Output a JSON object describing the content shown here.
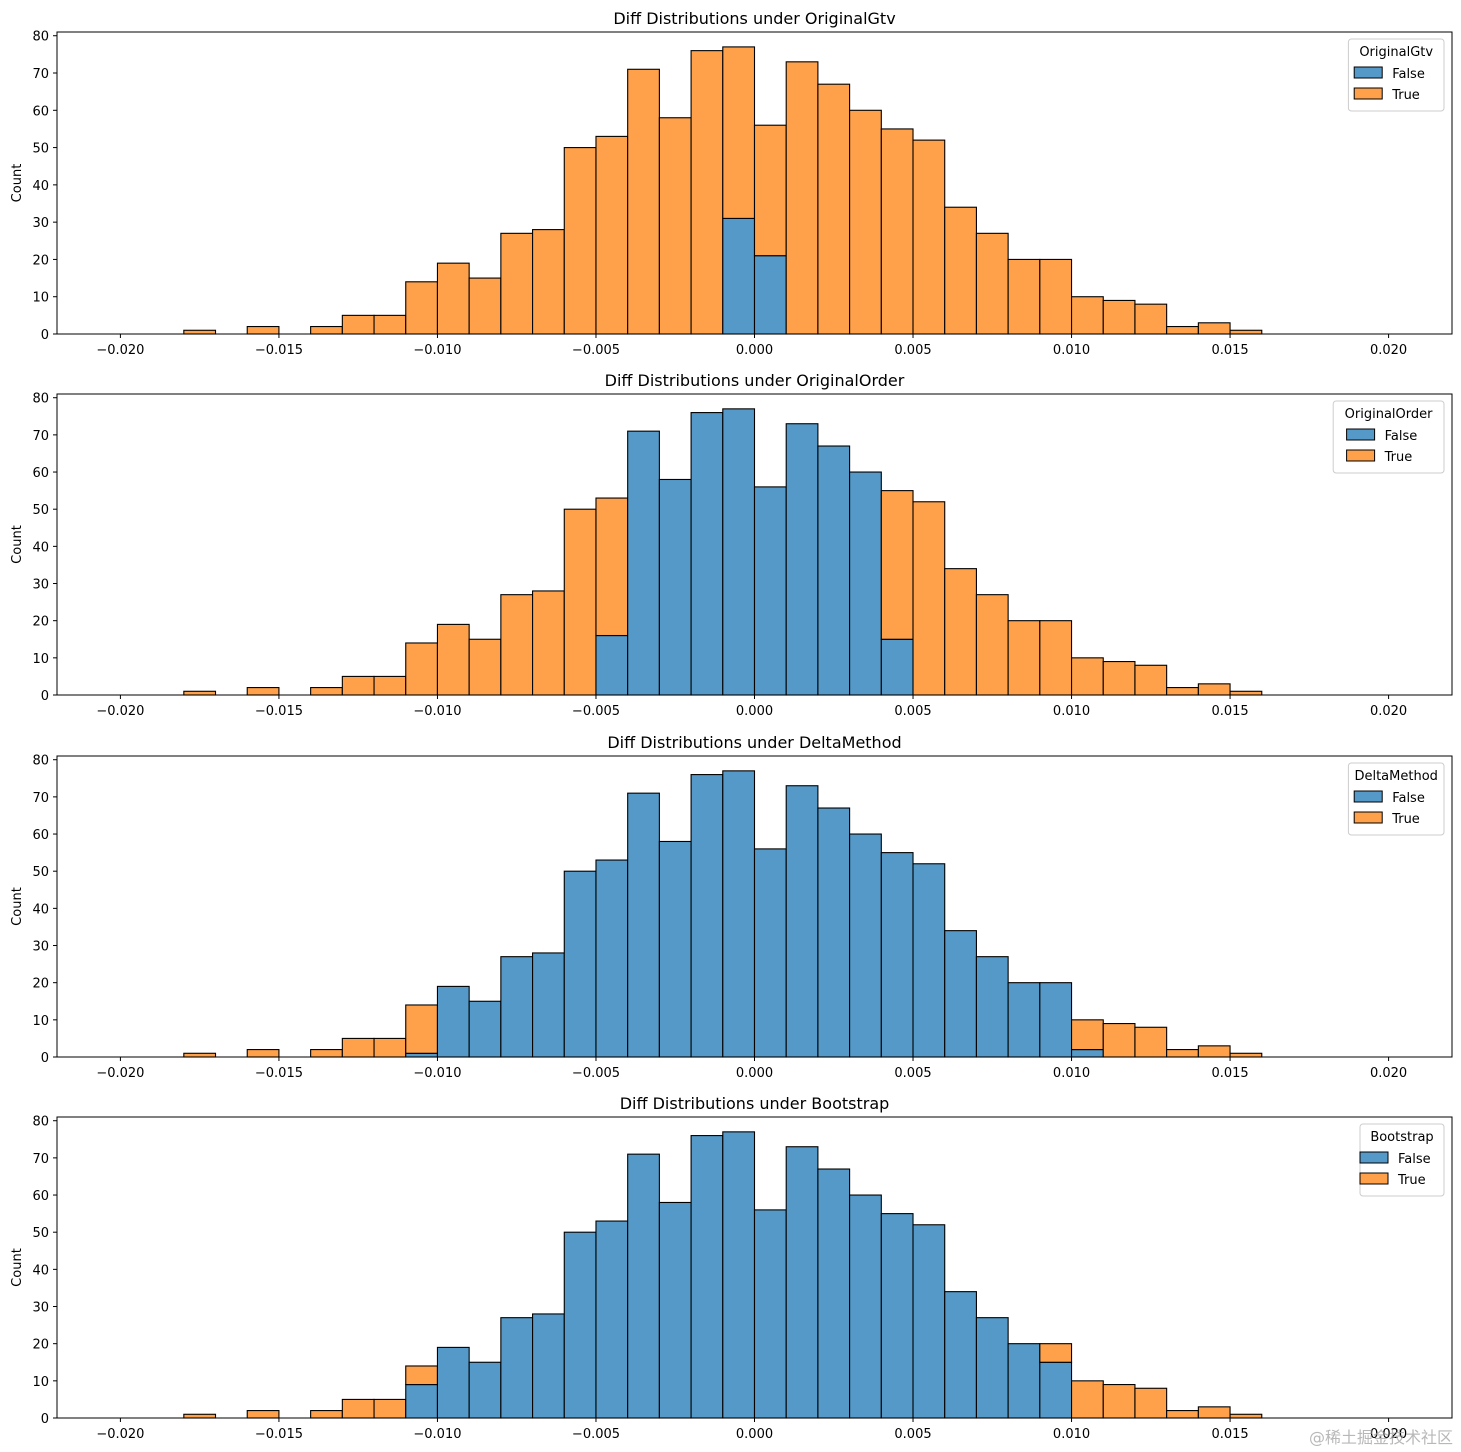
{
  "colors": {
    "false": "#5499c7",
    "true": "#ffa04a",
    "edge": "#000000"
  },
  "chart_data": [
    {
      "type": "bar",
      "stacked": true,
      "title": "Diff Distributions under OriginalGtv",
      "xlabel": "",
      "ylabel": "Count",
      "xlim": [
        -0.022,
        0.022
      ],
      "ylim": [
        0,
        81
      ],
      "xticks": [
        -0.02,
        -0.015,
        -0.01,
        -0.005,
        0.0,
        0.005,
        0.01,
        0.015,
        0.02
      ],
      "xtick_labels": [
        "−0.020",
        "−0.015",
        "−0.010",
        "−0.005",
        "0.000",
        "0.005",
        "0.010",
        "0.015",
        "0.020"
      ],
      "yticks": [
        0,
        10,
        20,
        30,
        40,
        50,
        60,
        70,
        80
      ],
      "ytick_labels": [
        "0",
        "10",
        "20",
        "30",
        "40",
        "50",
        "60",
        "70",
        "80"
      ],
      "bin_start": -0.02,
      "bin_width": 0.001,
      "legend": {
        "title": "OriginalGtv",
        "position": "top-right",
        "labels": [
          "False",
          "True"
        ]
      },
      "series": [
        {
          "name": "False",
          "values": [
            0,
            0,
            0,
            0,
            0,
            0,
            0,
            0,
            0,
            0,
            0,
            0,
            0,
            0,
            0,
            0,
            0,
            0,
            0,
            31,
            21,
            0,
            0,
            0,
            0,
            0,
            0,
            0,
            0,
            0,
            0,
            0,
            0,
            0,
            0,
            0,
            0,
            0,
            0,
            0
          ]
        },
        {
          "name": "True",
          "values": [
            0,
            0,
            1,
            0,
            2,
            0,
            2,
            5,
            5,
            14,
            19,
            15,
            27,
            28,
            50,
            53,
            71,
            58,
            76,
            46,
            35,
            73,
            67,
            60,
            55,
            52,
            34,
            27,
            20,
            20,
            10,
            9,
            8,
            2,
            3,
            1,
            0,
            0,
            0,
            0
          ]
        }
      ]
    },
    {
      "type": "bar",
      "stacked": true,
      "title": "Diff Distributions under OriginalOrder",
      "xlabel": "",
      "ylabel": "Count",
      "xlim": [
        -0.022,
        0.022
      ],
      "ylim": [
        0,
        81
      ],
      "xticks": [
        -0.02,
        -0.015,
        -0.01,
        -0.005,
        0.0,
        0.005,
        0.01,
        0.015,
        0.02
      ],
      "xtick_labels": [
        "−0.020",
        "−0.015",
        "−0.010",
        "−0.005",
        "0.000",
        "0.005",
        "0.010",
        "0.015",
        "0.020"
      ],
      "yticks": [
        0,
        10,
        20,
        30,
        40,
        50,
        60,
        70,
        80
      ],
      "ytick_labels": [
        "0",
        "10",
        "20",
        "30",
        "40",
        "50",
        "60",
        "70",
        "80"
      ],
      "bin_start": -0.02,
      "bin_width": 0.001,
      "legend": {
        "title": "OriginalOrder",
        "position": "top-right",
        "labels": [
          "False",
          "True"
        ]
      },
      "series": [
        {
          "name": "False",
          "values": [
            0,
            0,
            0,
            0,
            0,
            0,
            0,
            0,
            0,
            0,
            0,
            0,
            0,
            0,
            0,
            16,
            71,
            58,
            76,
            77,
            56,
            73,
            67,
            60,
            15,
            0,
            0,
            0,
            0,
            0,
            0,
            0,
            0,
            0,
            0,
            0,
            0,
            0,
            0,
            0
          ]
        },
        {
          "name": "True",
          "values": [
            0,
            0,
            1,
            0,
            2,
            0,
            2,
            5,
            5,
            14,
            19,
            15,
            27,
            28,
            50,
            37,
            0,
            0,
            0,
            0,
            0,
            0,
            0,
            0,
            40,
            52,
            34,
            27,
            20,
            20,
            10,
            9,
            8,
            2,
            3,
            1,
            0,
            0,
            0,
            0
          ]
        }
      ]
    },
    {
      "type": "bar",
      "stacked": true,
      "title": "Diff Distributions under DeltaMethod",
      "xlabel": "",
      "ylabel": "Count",
      "xlim": [
        -0.022,
        0.022
      ],
      "ylim": [
        0,
        81
      ],
      "xticks": [
        -0.02,
        -0.015,
        -0.01,
        -0.005,
        0.0,
        0.005,
        0.01,
        0.015,
        0.02
      ],
      "xtick_labels": [
        "−0.020",
        "−0.015",
        "−0.010",
        "−0.005",
        "0.000",
        "0.005",
        "0.010",
        "0.015",
        "0.020"
      ],
      "yticks": [
        0,
        10,
        20,
        30,
        40,
        50,
        60,
        70,
        80
      ],
      "ytick_labels": [
        "0",
        "10",
        "20",
        "30",
        "40",
        "50",
        "60",
        "70",
        "80"
      ],
      "bin_start": -0.02,
      "bin_width": 0.001,
      "legend": {
        "title": "DeltaMethod",
        "position": "top-right",
        "labels": [
          "False",
          "True"
        ]
      },
      "series": [
        {
          "name": "False",
          "values": [
            0,
            0,
            0,
            0,
            0,
            0,
            0,
            0,
            0,
            1,
            19,
            15,
            27,
            28,
            50,
            53,
            71,
            58,
            76,
            77,
            56,
            73,
            67,
            60,
            55,
            52,
            34,
            27,
            20,
            20,
            2,
            0,
            0,
            0,
            0,
            0,
            0,
            0,
            0,
            0
          ]
        },
        {
          "name": "True",
          "values": [
            0,
            0,
            1,
            0,
            2,
            0,
            2,
            5,
            5,
            13,
            0,
            0,
            0,
            0,
            0,
            0,
            0,
            0,
            0,
            0,
            0,
            0,
            0,
            0,
            0,
            0,
            0,
            0,
            0,
            0,
            8,
            9,
            8,
            2,
            3,
            1,
            0,
            0,
            0,
            0
          ]
        }
      ]
    },
    {
      "type": "bar",
      "stacked": true,
      "title": "Diff Distributions under Bootstrap",
      "xlabel": "",
      "ylabel": "Count",
      "xlim": [
        -0.022,
        0.022
      ],
      "ylim": [
        0,
        81
      ],
      "xticks": [
        -0.02,
        -0.015,
        -0.01,
        -0.005,
        0.0,
        0.005,
        0.01,
        0.015,
        0.02
      ],
      "xtick_labels": [
        "−0.020",
        "−0.015",
        "−0.010",
        "−0.005",
        "0.000",
        "0.005",
        "0.010",
        "0.015",
        "0.020"
      ],
      "yticks": [
        0,
        10,
        20,
        30,
        40,
        50,
        60,
        70,
        80
      ],
      "ytick_labels": [
        "0",
        "10",
        "20",
        "30",
        "40",
        "50",
        "60",
        "70",
        "80"
      ],
      "bin_start": -0.02,
      "bin_width": 0.001,
      "legend": {
        "title": "Bootstrap",
        "position": "top-right",
        "labels": [
          "False",
          "True"
        ]
      },
      "series": [
        {
          "name": "False",
          "values": [
            0,
            0,
            0,
            0,
            0,
            0,
            0,
            0,
            0,
            9,
            19,
            15,
            27,
            28,
            50,
            53,
            71,
            58,
            76,
            77,
            56,
            73,
            67,
            60,
            55,
            52,
            34,
            27,
            20,
            15,
            0,
            0,
            0,
            0,
            0,
            0,
            0,
            0,
            0,
            0
          ]
        },
        {
          "name": "True",
          "values": [
            0,
            0,
            1,
            0,
            2,
            0,
            2,
            5,
            5,
            5,
            0,
            0,
            0,
            0,
            0,
            0,
            0,
            0,
            0,
            0,
            0,
            0,
            0,
            0,
            0,
            0,
            0,
            0,
            0,
            5,
            10,
            9,
            8,
            2,
            3,
            1,
            0,
            0,
            0,
            0
          ]
        }
      ]
    }
  ],
  "watermark": "@稀土掘金技术社区"
}
